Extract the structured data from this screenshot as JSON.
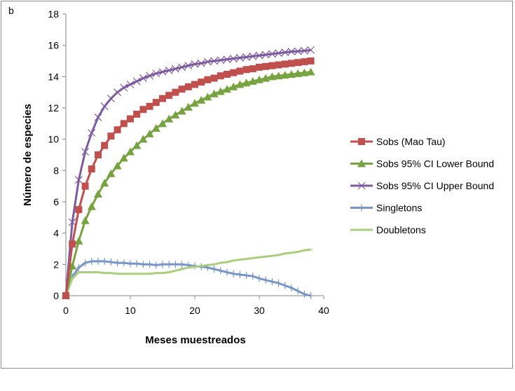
{
  "panel_letter": "b",
  "chart_data": {
    "type": "line",
    "xlabel": "Meses muestreados",
    "ylabel": "Número de especies",
    "xlim": [
      0,
      40
    ],
    "ylim": [
      0,
      18
    ],
    "x_ticks": [
      0,
      10,
      20,
      30,
      40
    ],
    "y_ticks": [
      0,
      2,
      4,
      6,
      8,
      10,
      12,
      14,
      16,
      18
    ],
    "grid": false,
    "legend_position": "right",
    "series": [
      {
        "name": "Sobs (Mao Tau)",
        "color": "#c0504d",
        "marker": "square",
        "x": [
          0,
          1,
          2,
          3,
          4,
          5,
          6,
          7,
          8,
          9,
          10,
          11,
          12,
          13,
          14,
          15,
          16,
          17,
          18,
          19,
          20,
          21,
          22,
          23,
          24,
          25,
          26,
          27,
          28,
          29,
          30,
          31,
          32,
          33,
          34,
          35,
          36,
          37,
          38
        ],
        "values": [
          0,
          3.3,
          5.5,
          7.0,
          8.1,
          9.0,
          9.6,
          10.2,
          10.6,
          11.0,
          11.3,
          11.6,
          11.9,
          12.1,
          12.35,
          12.6,
          12.8,
          13.0,
          13.2,
          13.35,
          13.5,
          13.65,
          13.8,
          13.9,
          14.05,
          14.15,
          14.25,
          14.35,
          14.45,
          14.5,
          14.6,
          14.65,
          14.7,
          14.75,
          14.8,
          14.85,
          14.9,
          14.95,
          15.0
        ]
      },
      {
        "name": "Sobs 95% CI Lower Bound",
        "color": "#76a33f",
        "marker": "triangle",
        "x": [
          0,
          1,
          2,
          3,
          4,
          5,
          6,
          7,
          8,
          9,
          10,
          11,
          12,
          13,
          14,
          15,
          16,
          17,
          18,
          19,
          20,
          21,
          22,
          23,
          24,
          25,
          26,
          27,
          28,
          29,
          30,
          31,
          32,
          33,
          34,
          35,
          36,
          37,
          38
        ],
        "values": [
          0,
          1.9,
          3.5,
          4.8,
          5.7,
          6.5,
          7.2,
          7.8,
          8.3,
          8.8,
          9.2,
          9.6,
          10.0,
          10.35,
          10.7,
          11.0,
          11.3,
          11.55,
          11.8,
          12.05,
          12.3,
          12.5,
          12.7,
          12.9,
          13.05,
          13.2,
          13.35,
          13.5,
          13.6,
          13.7,
          13.8,
          13.9,
          14.0,
          14.05,
          14.1,
          14.15,
          14.2,
          14.25,
          14.3
        ]
      },
      {
        "name": "Sobs 95% CI Upper Bound",
        "color": "#7d5aa0",
        "marker": "x",
        "x": [
          0,
          1,
          2,
          3,
          4,
          5,
          6,
          7,
          8,
          9,
          10,
          11,
          12,
          13,
          14,
          15,
          16,
          17,
          18,
          19,
          20,
          21,
          22,
          23,
          24,
          25,
          26,
          27,
          28,
          29,
          30,
          31,
          32,
          33,
          34,
          35,
          36,
          37,
          38
        ],
        "values": [
          0,
          4.7,
          7.4,
          9.2,
          10.4,
          11.4,
          12.1,
          12.6,
          13.0,
          13.3,
          13.5,
          13.7,
          13.9,
          14.05,
          14.2,
          14.3,
          14.4,
          14.5,
          14.6,
          14.7,
          14.8,
          14.85,
          14.95,
          15.0,
          15.05,
          15.1,
          15.15,
          15.2,
          15.25,
          15.3,
          15.35,
          15.4,
          15.45,
          15.5,
          15.55,
          15.6,
          15.62,
          15.65,
          15.7
        ]
      },
      {
        "name": "Singletons",
        "color": "#7795c6",
        "marker": "plus",
        "x": [
          0,
          1,
          2,
          3,
          4,
          5,
          6,
          7,
          8,
          9,
          10,
          11,
          12,
          13,
          14,
          15,
          16,
          17,
          18,
          19,
          20,
          21,
          22,
          23,
          24,
          25,
          26,
          27,
          28,
          29,
          30,
          31,
          32,
          33,
          34,
          35,
          36,
          37,
          38
        ],
        "values": [
          0,
          1.2,
          1.8,
          2.1,
          2.2,
          2.2,
          2.2,
          2.15,
          2.1,
          2.1,
          2.05,
          2.05,
          2.0,
          2.0,
          1.95,
          2.0,
          2.0,
          2.0,
          2.0,
          1.95,
          1.9,
          1.85,
          1.8,
          1.7,
          1.6,
          1.5,
          1.4,
          1.35,
          1.3,
          1.25,
          1.1,
          1.0,
          0.9,
          0.8,
          0.65,
          0.5,
          0.3,
          0.1,
          0.0
        ]
      },
      {
        "name": "Doubletons",
        "color": "#a9cf7e",
        "marker": "dash",
        "x": [
          0,
          1,
          2,
          3,
          4,
          5,
          6,
          7,
          8,
          9,
          10,
          11,
          12,
          13,
          14,
          15,
          16,
          17,
          18,
          19,
          20,
          21,
          22,
          23,
          24,
          25,
          26,
          27,
          28,
          29,
          30,
          31,
          32,
          33,
          34,
          35,
          36,
          37,
          38
        ],
        "values": [
          0,
          1.1,
          1.5,
          1.5,
          1.5,
          1.5,
          1.45,
          1.45,
          1.4,
          1.4,
          1.4,
          1.4,
          1.4,
          1.4,
          1.45,
          1.45,
          1.5,
          1.6,
          1.7,
          1.8,
          1.85,
          1.9,
          1.95,
          2.0,
          2.1,
          2.15,
          2.25,
          2.3,
          2.35,
          2.4,
          2.45,
          2.5,
          2.55,
          2.6,
          2.7,
          2.75,
          2.8,
          2.9,
          2.95
        ]
      }
    ]
  }
}
